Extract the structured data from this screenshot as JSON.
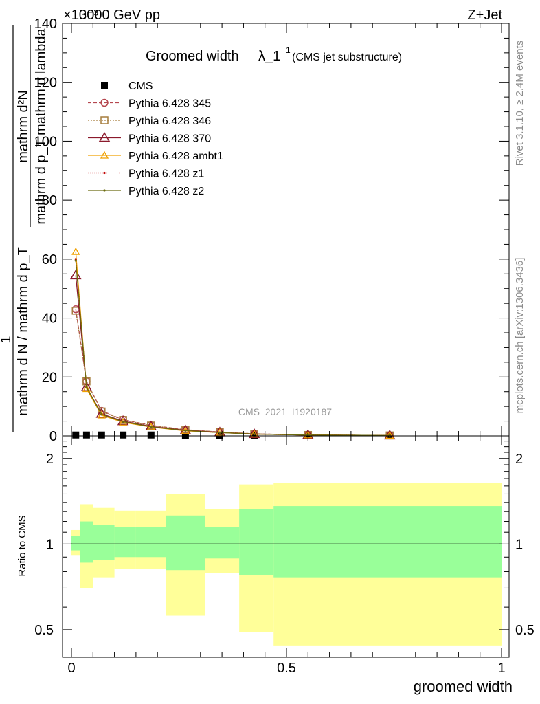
{
  "header": {
    "energy": "13000 GeV pp",
    "process": "Z+Jet",
    "exponent": "×10⁻³"
  },
  "side_labels": {
    "rivet": "Rivet 3.1.10, ≥ 2.4M events",
    "mcplots": "mcplots.cern.ch [arXiv:1306.3436]"
  },
  "chart_data": [
    {
      "type": "line",
      "title_main": "Groomed width",
      "title_lambda": "λ_1",
      "title_sup": "1",
      "title_sub": "(CMS jet substructure)",
      "watermark": "CMS_2021_I1920187",
      "ylabel_line1": "mathrm d²N",
      "ylabel_line2": "mathrm d p_T mathrm d lambda",
      "ylabel_frac_left": "1",
      "ylabel_frac_left_den": "mathrm d N / mathrm d p_T",
      "ylim": [
        0,
        140
      ],
      "y_ticks": [
        0,
        20,
        40,
        60,
        80,
        100,
        120,
        140
      ],
      "xlim": [
        0,
        1
      ],
      "legend_position": "top-left",
      "data_x": [
        0.01,
        0.035,
        0.07,
        0.12,
        0.185,
        0.265,
        0.345,
        0.425,
        0.55,
        0.74
      ],
      "series": [
        {
          "name": "CMS",
          "color": "#000000",
          "marker": "square",
          "dash": "",
          "values": [
            0.3,
            0.3,
            0.3,
            0.3,
            0.3,
            0.2,
            0.15,
            0.1,
            0.05,
            0.02
          ]
        },
        {
          "name": "Pythia 6.428 345",
          "color": "#b5474f",
          "marker": "circle",
          "dash": "5,3",
          "values": [
            43,
            18.5,
            8.5,
            5.5,
            3.6,
            2.1,
            1.3,
            0.7,
            0.3,
            0.15
          ]
        },
        {
          "name": "Pythia 6.428 346",
          "color": "#a67d3d",
          "marker": "square-open",
          "dash": "2,2",
          "values": [
            42.5,
            18.5,
            8.3,
            5.4,
            3.5,
            2.1,
            1.3,
            0.7,
            0.3,
            0.15
          ]
        },
        {
          "name": "Pythia 6.428 370",
          "color": "#8b1a2c",
          "marker": "triangle",
          "dash": "",
          "values": [
            54.5,
            16.5,
            7.5,
            5.0,
            3.2,
            1.9,
            1.2,
            0.6,
            0.3,
            0.15
          ]
        },
        {
          "name": "Pythia 6.428 ambt1",
          "color": "#f0a000",
          "marker": "triangle-small",
          "dash": "",
          "values": [
            62.5,
            16.0,
            7.0,
            4.6,
            3.0,
            1.7,
            1.1,
            0.6,
            0.3,
            0.15
          ]
        },
        {
          "name": "Pythia 6.428 z1",
          "color": "#c00000",
          "marker": "dot",
          "dash": "1,2",
          "values": [
            60.0,
            16.5,
            7.3,
            4.8,
            3.1,
            1.8,
            1.1,
            0.6,
            0.3,
            0.15
          ]
        },
        {
          "name": "Pythia 6.428 z2",
          "color": "#6b6b10",
          "marker": "dot",
          "dash": "",
          "values": [
            59.5,
            16.5,
            7.3,
            4.8,
            3.1,
            1.8,
            1.1,
            0.6,
            0.3,
            0.15
          ]
        }
      ]
    },
    {
      "type": "area",
      "ylabel": "Ratio to CMS",
      "xlabel": "groomed width",
      "ylim": [
        0.4,
        2.4
      ],
      "y_scale": "log",
      "y_ticks": [
        0.5,
        1,
        2
      ],
      "y_tick_labels": [
        "0.5",
        "1",
        "2"
      ],
      "xlim": [
        0,
        1
      ],
      "x_ticks": [
        0,
        0.5,
        1
      ],
      "x_tick_labels": [
        "0",
        "0.5",
        "1"
      ],
      "bin_edges": [
        0,
        0.02,
        0.05,
        0.1,
        0.15,
        0.22,
        0.31,
        0.39,
        0.47,
        1.0
      ],
      "band_outer_colour": "#ffff99",
      "band_inner_colour": "#99ff99",
      "outer_low": [
        0.91,
        0.7,
        0.76,
        0.82,
        0.82,
        0.56,
        0.79,
        0.49,
        0.44
      ],
      "outer_high": [
        1.12,
        1.38,
        1.34,
        1.31,
        1.31,
        1.5,
        1.33,
        1.62,
        1.64
      ],
      "inner_low": [
        0.95,
        0.86,
        0.88,
        0.9,
        0.9,
        0.81,
        0.89,
        0.78,
        0.76
      ],
      "inner_high": [
        1.07,
        1.2,
        1.17,
        1.15,
        1.15,
        1.26,
        1.15,
        1.33,
        1.36
      ]
    }
  ]
}
